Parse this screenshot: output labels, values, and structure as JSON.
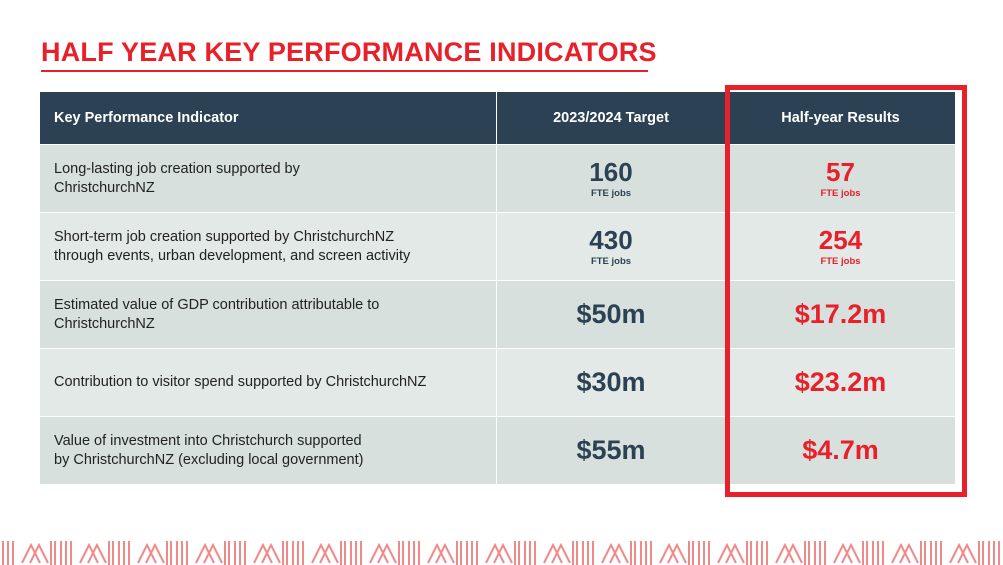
{
  "title": "HALF YEAR KEY PERFORMANCE INDICATORS",
  "accent_color": "#e8202a",
  "header_color": "#2c4254",
  "table": {
    "headers": {
      "kpi": "Key Performance Indicator",
      "target": "2023/2024 Target",
      "result": "Half-year Results"
    },
    "rows": [
      {
        "kpi_line1": "Long-lasting job creation supported by",
        "kpi_line2": "ChristchurchNZ",
        "target_value": "160",
        "target_unit": "FTE jobs",
        "result_value": "57",
        "result_unit": "FTE jobs"
      },
      {
        "kpi_line1": "Short-term job creation supported by ChristchurchNZ",
        "kpi_line2": "through events,  urban development, and screen activity",
        "target_value": "430",
        "target_unit": "FTE jobs",
        "result_value": "254",
        "result_unit": "FTE jobs"
      },
      {
        "kpi_line1": "Estimated value of GDP contribution attributable to",
        "kpi_line2": "ChristchurchNZ",
        "target_value": "$50m",
        "result_value": "$17.2m"
      },
      {
        "kpi_line1": "Contribution to visitor spend supported by ChristchurchNZ",
        "target_value": "$30m",
        "result_value": "$23.2m"
      },
      {
        "kpi_line1": "Value of investment into Christchurch supported",
        "kpi_line2": "by ChristchurchNZ (excluding local government)",
        "target_value": "$55m",
        "result_value": "$4.7m"
      }
    ]
  },
  "footer_pattern": {
    "color": "#f08a8a",
    "icon": "chevron-stripe-pattern"
  }
}
